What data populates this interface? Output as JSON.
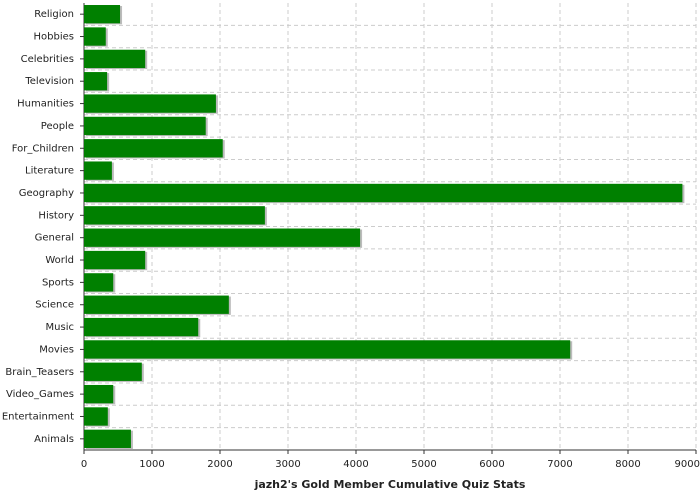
{
  "chart_data": {
    "type": "bar",
    "orientation": "horizontal",
    "xlabel": "jazh2's Gold Member Cumulative Quiz Stats",
    "categories": [
      "Religion",
      "Hobbies",
      "Celebrities",
      "Television",
      "Humanities",
      "People",
      "For_Children",
      "Literature",
      "Geography",
      "History",
      "General",
      "World",
      "Sports",
      "Science",
      "Music",
      "Movies",
      "Brain_Teasers",
      "Video_Games",
      "Entertainment",
      "Animals"
    ],
    "values": [
      530,
      320,
      900,
      340,
      1940,
      1790,
      2040,
      410,
      8800,
      2660,
      4060,
      900,
      430,
      2130,
      1680,
      7150,
      850,
      430,
      350,
      690
    ],
    "color": "#008000",
    "xlim": [
      0,
      9000
    ],
    "xticks": [
      0,
      1000,
      2000,
      3000,
      4000,
      5000,
      6000,
      7000,
      8000,
      9000
    ],
    "grid": true
  }
}
